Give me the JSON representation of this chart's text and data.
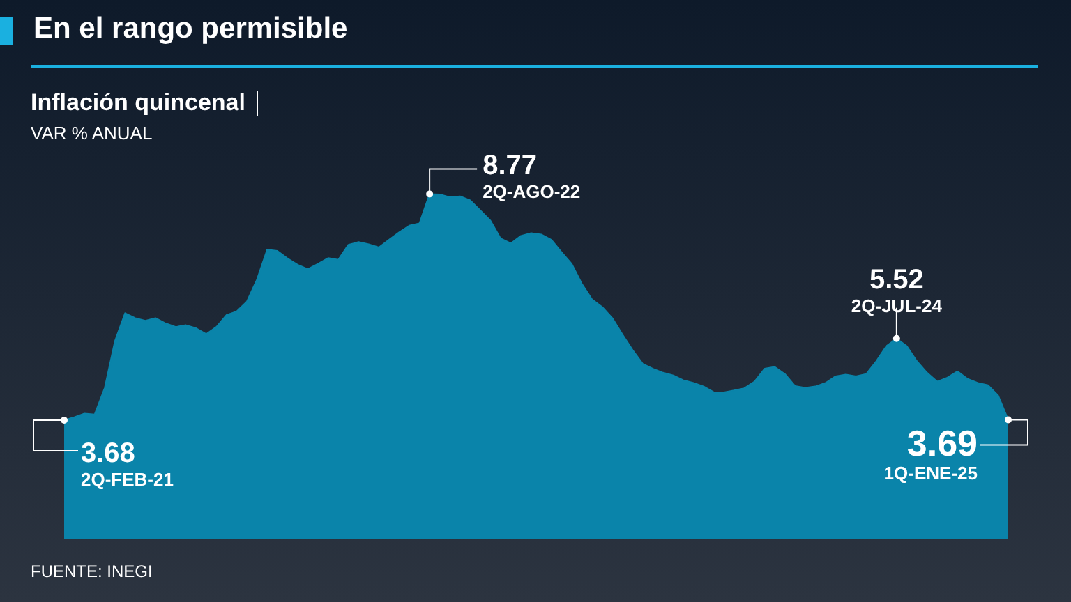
{
  "chart_data": {
    "type": "area",
    "title": "En el rango permisible",
    "subtitle": "Inflación quincenal",
    "ylabel": "VAR % ANUAL",
    "annotations": [
      "2Q-FEB-21",
      "2Q-AGO-22",
      "2Q-JUL-24",
      "1Q-ENE-25",
      "FUENTE: INEGI"
    ],
    "categories": [
      null,
      null,
      null,
      null,
      null,
      null,
      null,
      null,
      null,
      null,
      null,
      null,
      null,
      null,
      null,
      null,
      null,
      null,
      null,
      null,
      null,
      null,
      null,
      null,
      null,
      null,
      null,
      null,
      null,
      null,
      null,
      null,
      null,
      null,
      null,
      null,
      null,
      null,
      null,
      null,
      null,
      null,
      null,
      null,
      null,
      null,
      null,
      null,
      null,
      null,
      null,
      null,
      null,
      null,
      null,
      null,
      null,
      null,
      null,
      null,
      null,
      null,
      null,
      null,
      null,
      null,
      null,
      null,
      null,
      null,
      null,
      null,
      null,
      null,
      null,
      null,
      null,
      null,
      null,
      null,
      null,
      null,
      null,
      null,
      null,
      null,
      null,
      null,
      null,
      null,
      null,
      null,
      null,
      null
    ],
    "values": [
      3.68,
      3.75,
      3.83,
      3.81,
      4.41,
      5.46,
      6.09,
      5.98,
      5.92,
      5.98,
      5.86,
      5.78,
      5.82,
      5.75,
      5.62,
      5.78,
      6.05,
      6.13,
      6.35,
      6.85,
      7.52,
      7.49,
      7.32,
      7.18,
      7.08,
      7.2,
      7.33,
      7.29,
      7.63,
      7.69,
      7.64,
      7.57,
      7.74,
      7.91,
      8.06,
      8.11,
      8.77,
      8.76,
      8.7,
      8.72,
      8.63,
      8.4,
      8.17,
      7.77,
      7.66,
      7.83,
      7.89,
      7.86,
      7.74,
      7.46,
      7.2,
      6.75,
      6.4,
      6.23,
      5.98,
      5.61,
      5.26,
      4.95,
      4.84,
      4.75,
      4.69,
      4.58,
      4.52,
      4.44,
      4.31,
      4.31,
      4.35,
      4.4,
      4.55,
      4.84,
      4.88,
      4.72,
      4.45,
      4.41,
      4.44,
      4.52,
      4.67,
      4.71,
      4.67,
      4.72,
      5.01,
      5.35,
      5.52,
      5.35,
      5.01,
      4.75,
      4.55,
      4.64,
      4.78,
      4.61,
      4.52,
      4.47,
      4.24,
      3.69
    ],
    "value_labels": [
      "3.68",
      null,
      null,
      null,
      null,
      null,
      null,
      null,
      null,
      null,
      null,
      null,
      null,
      null,
      null,
      null,
      null,
      null,
      null,
      null,
      null,
      null,
      null,
      null,
      null,
      null,
      null,
      null,
      null,
      null,
      null,
      null,
      null,
      null,
      null,
      null,
      "8.77",
      null,
      null,
      null,
      null,
      null,
      null,
      null,
      null,
      null,
      null,
      null,
      null,
      null,
      null,
      null,
      null,
      null,
      null,
      null,
      null,
      null,
      null,
      null,
      null,
      null,
      null,
      null,
      null,
      null,
      null,
      null,
      null,
      null,
      null,
      null,
      null,
      null,
      null,
      null,
      null,
      null,
      null,
      null,
      null,
      null,
      "5.52",
      null,
      null,
      null,
      null,
      null,
      null,
      null,
      null,
      null,
      null,
      "3.69"
    ],
    "color": "#0a84aa",
    "tick_labels": false,
    "grid": false,
    "legend": false
  }
}
